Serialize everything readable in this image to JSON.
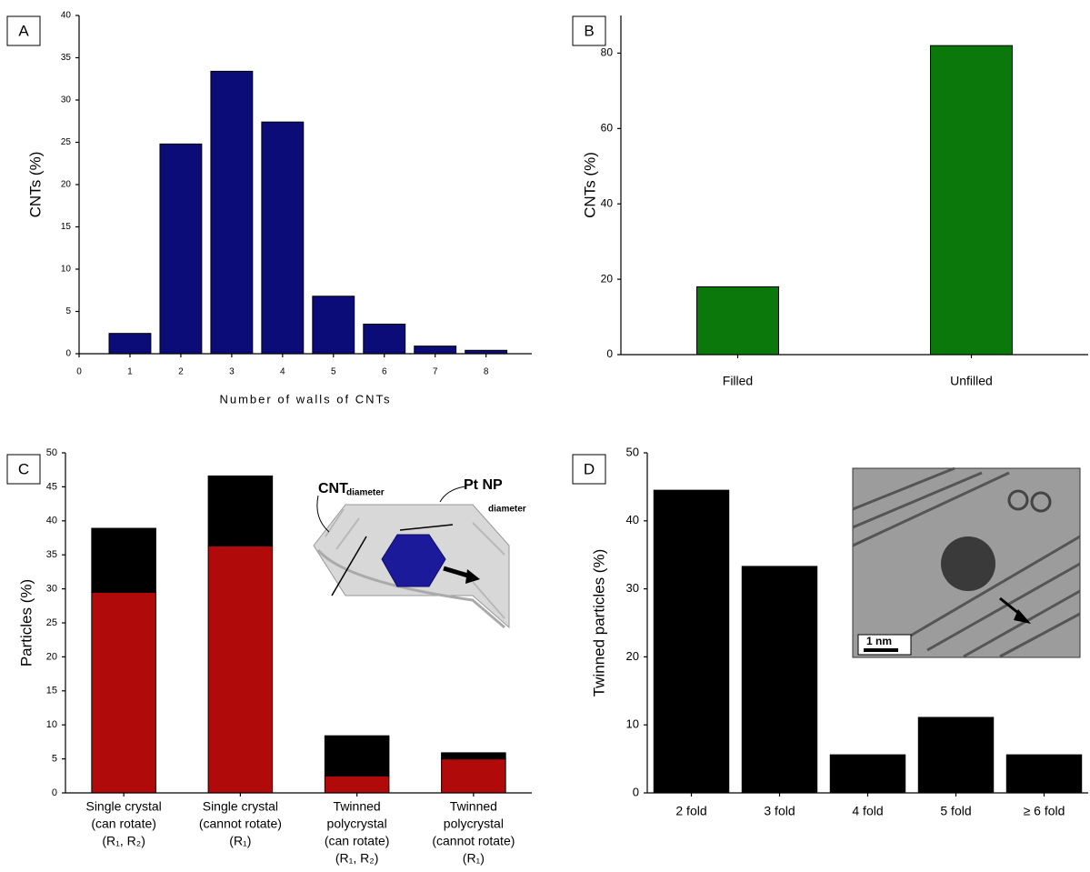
{
  "chart_data": [
    {
      "type": "bar",
      "panel_label": "A",
      "x": [
        1,
        2,
        3,
        4,
        5,
        6,
        7,
        8
      ],
      "values": [
        2.4,
        24.8,
        33.4,
        27.4,
        6.8,
        3.5,
        0.9,
        0.4
      ],
      "color": "#0c0c78",
      "xlim": [
        0,
        8.9
      ],
      "xticks": [
        0,
        1,
        2,
        3,
        4,
        5,
        6,
        7,
        8
      ],
      "ylim": [
        0,
        40
      ],
      "yticks": [
        0,
        5,
        10,
        15,
        20,
        25,
        30,
        35,
        40
      ],
      "xlabel": "Number of walls of CNTs",
      "ylabel": "CNTs (%)"
    },
    {
      "type": "bar",
      "panel_label": "B",
      "categories": [
        [
          "Filled"
        ],
        [
          "Unfilled"
        ]
      ],
      "values": [
        18,
        82
      ],
      "color": "#0a780a",
      "ylim": [
        0,
        90
      ],
      "yticks": [
        0,
        20,
        40,
        60,
        80
      ],
      "ylabel": "CNTs (%)"
    },
    {
      "type": "stacked-bar",
      "panel_label": "C",
      "categories": [
        [
          "Single crystal",
          "(can rotate)",
          "(R₁, R₂)"
        ],
        [
          "Single crystal",
          "(cannot rotate)",
          "(R₁)"
        ],
        [
          "Twinned",
          "polycrystal",
          "(can rotate)",
          "(R₁, R₂)"
        ],
        [
          "Twinned",
          "polycrystal",
          "(cannot rotate)",
          "(R₁)"
        ]
      ],
      "series": [
        {
          "color": "#b00a0a",
          "values": [
            29.5,
            36.3,
            2.5,
            5.0
          ]
        },
        {
          "color": "#000000",
          "values": [
            9.4,
            10.3,
            5.9,
            0.9
          ]
        }
      ],
      "ylim": [
        0,
        50
      ],
      "yticks": [
        0,
        5,
        10,
        15,
        20,
        25,
        30,
        35,
        40,
        45,
        50
      ],
      "ylabel": "Particles (%)",
      "annotations": [
        "CNT",
        "diameter",
        "Pt NP",
        "diameter"
      ]
    },
    {
      "type": "bar",
      "panel_label": "D",
      "categories": [
        [
          "2 fold"
        ],
        [
          "3 fold"
        ],
        [
          "4 fold"
        ],
        [
          "5 fold"
        ],
        [
          "≥ 6 fold"
        ]
      ],
      "values": [
        44.5,
        33.3,
        5.6,
        11.1,
        5.6
      ],
      "color": "#000000",
      "ylim": [
        0,
        50
      ],
      "yticks": [
        0,
        10,
        20,
        30,
        40,
        50
      ],
      "ylabel": "Twinned particles (%)",
      "annotations": [
        "1 nm"
      ]
    }
  ]
}
